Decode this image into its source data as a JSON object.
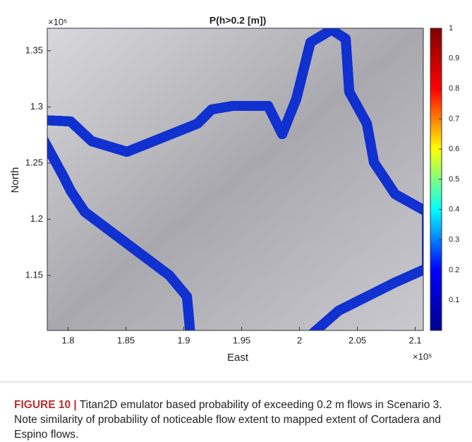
{
  "chart_data": {
    "type": "heatmap",
    "title": "P(h>0.2 [m])",
    "xlabel": "East",
    "ylabel": "North",
    "x_multiplier": "×10⁵",
    "y_multiplier": "×10⁵",
    "xlim": [
      1.782,
      2.107
    ],
    "ylim": [
      1.101,
      1.37
    ],
    "xticks": [
      1.8,
      1.85,
      1.9,
      1.95,
      2,
      2.05,
      2.1
    ],
    "yticks": [
      1.15,
      1.2,
      1.25,
      1.3,
      1.35
    ],
    "clim": [
      0,
      1
    ],
    "cticks": [
      0.1,
      0.2,
      0.3,
      0.4,
      0.5,
      0.6,
      0.7,
      0.8,
      0.9,
      1
    ],
    "colormap": [
      "#00008f",
      "#0000ff",
      "#00ffff",
      "#ffff00",
      "#ff0000",
      "#800000"
    ]
  },
  "caption": {
    "label": "FIGURE 10 |",
    "text": "Titan2D emulator based probability of exceeding 0.2 m flows in Scenario 3. Note similarity of probability of noticeable flow extent to mapped extent of Cortadera and Espino flows."
  }
}
